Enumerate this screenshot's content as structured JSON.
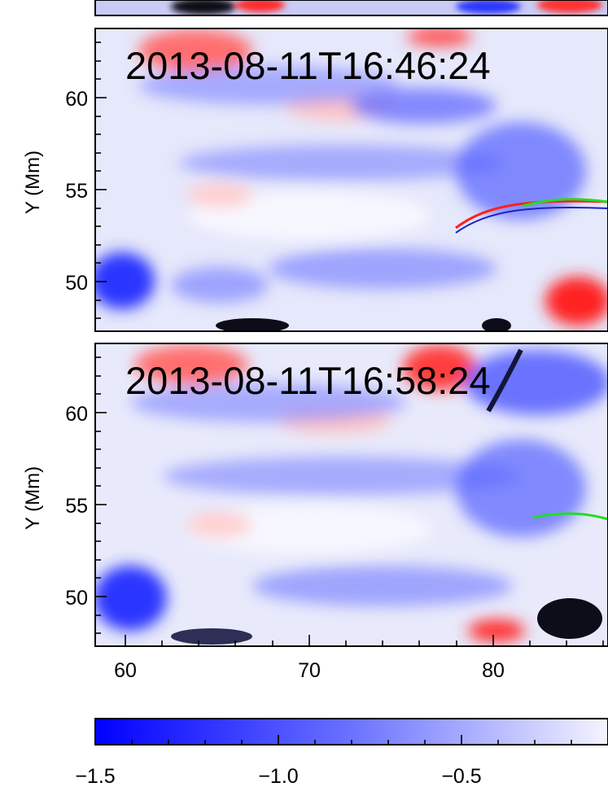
{
  "panels": [
    {
      "timestamp": "2013-08-11T16:46:24"
    },
    {
      "timestamp": "2013-08-11T16:58:24"
    }
  ],
  "y_axis": {
    "label": "Y (Mm)",
    "ticks": [
      60,
      55,
      50
    ]
  },
  "x_axis": {
    "ticks": [
      60,
      70,
      80
    ]
  },
  "colorbar": {
    "ticks": [
      "−1.5",
      "−1.0",
      "−0.5"
    ]
  },
  "colors": {
    "negative": "#1a1aff",
    "positive": "#ff1a1a",
    "mid": "#ffffff",
    "contour": "#22dd22"
  }
}
